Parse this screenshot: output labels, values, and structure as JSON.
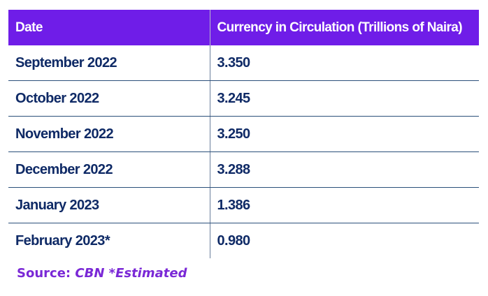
{
  "chart_data": {
    "type": "table",
    "columns": [
      "Date",
      "Currency in Circulation (Trillions of Naira)"
    ],
    "rows": [
      {
        "date": "September 2022",
        "value": "3.350"
      },
      {
        "date": "October 2022",
        "value": "3.245"
      },
      {
        "date": "November 2022",
        "value": "3.250"
      },
      {
        "date": "December 2022",
        "value": "3.288"
      },
      {
        "date": "January 2023",
        "value": "1.386"
      },
      {
        "date": "February 2023*",
        "value": "0.980"
      }
    ]
  },
  "footer": {
    "source_label": "Source:",
    "source_name": "CBN *Estimated"
  },
  "colors": {
    "header_bg": "#6f1de8",
    "row_text": "#0f2a66",
    "source_text": "#7a28d6"
  }
}
